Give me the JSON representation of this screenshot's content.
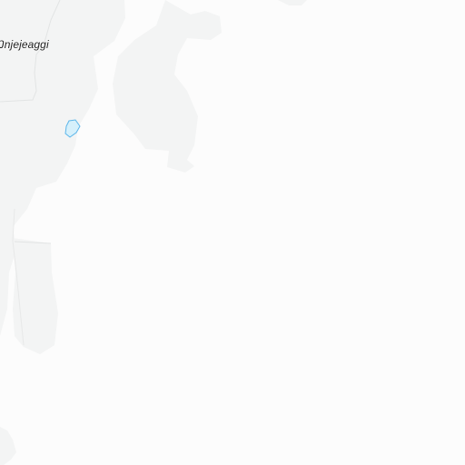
{
  "map": {
    "place_label": "Ŋnjejeaggi"
  },
  "colors": {
    "background": "#fcfcfc",
    "land_shade": "#f3f4f4",
    "boundary": "#e2e4e4",
    "water": "#d6f0fb",
    "water_stroke": "#5cb6ea"
  }
}
